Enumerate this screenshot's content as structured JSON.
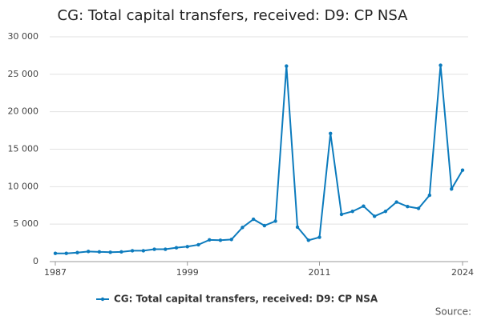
{
  "chart_data": {
    "type": "line",
    "title": "CG: Total capital transfers, received: D9: CP NSA",
    "source": "Source:",
    "x": [
      1987,
      1988,
      1989,
      1990,
      1991,
      1992,
      1993,
      1994,
      1995,
      1996,
      1997,
      1998,
      1999,
      2000,
      2001,
      2002,
      2003,
      2004,
      2005,
      2006,
      2007,
      2008,
      2009,
      2010,
      2011,
      2012,
      2013,
      2014,
      2015,
      2016,
      2017,
      2018,
      2019,
      2020,
      2021,
      2022,
      2023,
      2024
    ],
    "series": [
      {
        "name": "CG: Total capital transfers, received: D9: CP NSA",
        "color": "#0c7bbd",
        "values": [
          1100,
          1100,
          1200,
          1350,
          1300,
          1250,
          1300,
          1450,
          1450,
          1650,
          1650,
          1850,
          2000,
          2250,
          2900,
          2850,
          2950,
          4550,
          5650,
          4800,
          5400,
          26100,
          4600,
          2850,
          3250,
          17100,
          6300,
          6700,
          7400,
          6050,
          6700,
          7950,
          7350,
          7100,
          8850,
          26200,
          9700,
          12200
        ]
      }
    ],
    "xlim": [
      1987,
      2024
    ],
    "xticks": [
      1987,
      1999,
      2011,
      2024
    ],
    "ylim": [
      0,
      30000
    ],
    "yticks": [
      0,
      {
        "value": 5000,
        "label": "5 000"
      },
      {
        "value": 10000,
        "label": "10 000"
      },
      {
        "value": 15000,
        "label": "15 000"
      },
      {
        "value": 20000,
        "label": "20 000"
      },
      {
        "value": 25000,
        "label": "25 000"
      },
      {
        "value": 30000,
        "label": "30 000"
      }
    ],
    "grid": true
  }
}
